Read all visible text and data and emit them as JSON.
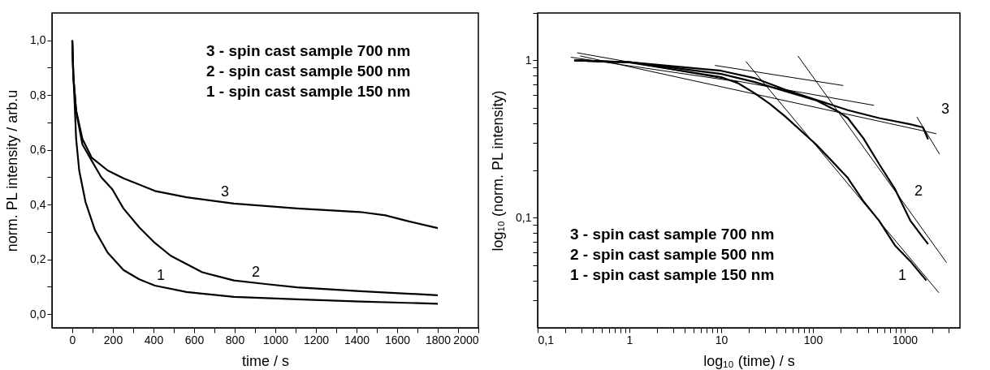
{
  "chart_data": [
    {
      "type": "line",
      "xlabel": "time / s",
      "ylabel": "norm. PL intensity / arb.u",
      "xlim": [
        -100,
        2000
      ],
      "ylim": [
        -0.05,
        1.1
      ],
      "xticks": [
        0,
        {
          "value": 100,
          "label": null
        },
        200,
        {
          "value": 300,
          "label": null
        },
        400,
        {
          "value": 500,
          "label": null
        },
        600,
        {
          "value": 700,
          "label": null
        },
        800,
        {
          "value": 900,
          "label": null
        },
        1000,
        {
          "value": 1100,
          "label": null
        },
        1200,
        {
          "value": 1300,
          "label": null
        },
        1400,
        {
          "value": 1500,
          "label": null
        },
        1600,
        {
          "value": 1700,
          "label": null
        },
        1800,
        {
          "value": 1900,
          "label": null
        },
        2000
      ],
      "yticks": [
        {
          "value": 0,
          "label": "0,0"
        },
        {
          "value": 0.1,
          "label": null
        },
        {
          "value": 0.2,
          "label": "0,2"
        },
        {
          "value": 0.3,
          "label": null
        },
        {
          "value": 0.4,
          "label": "0,4"
        },
        {
          "value": 0.5,
          "label": null
        },
        {
          "value": 0.6,
          "label": "0,6"
        },
        {
          "value": 0.7,
          "label": null
        },
        {
          "value": 0.8,
          "label": "0,8"
        },
        {
          "value": 0.9,
          "label": null
        },
        {
          "value": 1.0,
          "label": "1,0"
        }
      ],
      "grid": false,
      "marker": "none",
      "line_style": "solid",
      "series": [
        {
          "color": "#000000",
          "x": [
            0,
            5,
            19,
            50,
            96,
            174,
            252,
            330,
            407,
            563,
            796,
            1107,
            1418,
            1542,
            1651,
            1800
          ],
          "values": [
            1.0,
            0.87,
            0.744,
            0.64,
            0.571,
            0.525,
            0.496,
            0.473,
            0.45,
            0.427,
            0.404,
            0.386,
            0.373,
            0.361,
            0.34,
            0.314
          ]
        },
        {
          "color": "#000000",
          "x": [
            0,
            5,
            19,
            50,
            96,
            143,
            197,
            252,
            330,
            407,
            485,
            640,
            796,
            951,
            1107,
            1418,
            1800
          ],
          "values": [
            1.0,
            0.87,
            0.74,
            0.62,
            0.56,
            0.5,
            0.456,
            0.386,
            0.317,
            0.26,
            0.213,
            0.153,
            0.123,
            0.11,
            0.098,
            0.084,
            0.069
          ]
        },
        {
          "color": "#000000",
          "x": [
            0,
            5,
            11,
            19,
            34,
            65,
            112,
            174,
            252,
            330,
            407,
            563,
            796,
            1107,
            1418,
            1800
          ],
          "values": [
            1.0,
            0.88,
            0.78,
            0.64,
            0.525,
            0.41,
            0.306,
            0.225,
            0.161,
            0.127,
            0.104,
            0.081,
            0.063,
            0.054,
            0.046,
            0.038
          ]
        }
      ],
      "annotations": [
        "3 - spin cast sample 700 nm",
        "2 - spin cast sample 500 nm",
        "1 - spin cast sample 150 nm",
        "3",
        "2",
        "1"
      ]
    },
    {
      "type": "line",
      "xlabel": "log₁₀ (time) / s",
      "ylabel": "log₁₀ (norm. PL intensity)",
      "log": "xy",
      "xlim": [
        0.1,
        4000
      ],
      "ylim": [
        0.02,
        2
      ],
      "xticks": [
        {
          "value": 0.1,
          "label": "0,1"
        },
        {
          "value": 0.2,
          "label": null
        },
        {
          "value": 0.3,
          "label": null
        },
        {
          "value": 0.4,
          "label": null
        },
        {
          "value": 0.5,
          "label": null
        },
        {
          "value": 0.6,
          "label": null
        },
        {
          "value": 0.7,
          "label": null
        },
        {
          "value": 0.8,
          "label": null
        },
        {
          "value": 0.9,
          "label": null
        },
        1,
        {
          "value": 2,
          "label": null
        },
        {
          "value": 3,
          "label": null
        },
        {
          "value": 4,
          "label": null
        },
        {
          "value": 5,
          "label": null
        },
        {
          "value": 6,
          "label": null
        },
        {
          "value": 7,
          "label": null
        },
        {
          "value": 8,
          "label": null
        },
        {
          "value": 9,
          "label": null
        },
        10,
        {
          "value": 20,
          "label": null
        },
        {
          "value": 30,
          "label": null
        },
        {
          "value": 40,
          "label": null
        },
        {
          "value": 50,
          "label": null
        },
        {
          "value": 60,
          "label": null
        },
        {
          "value": 70,
          "label": null
        },
        {
          "value": 80,
          "label": null
        },
        {
          "value": 90,
          "label": null
        },
        100,
        {
          "value": 200,
          "label": null
        },
        {
          "value": 300,
          "label": null
        },
        {
          "value": 400,
          "label": null
        },
        {
          "value": 500,
          "label": null
        },
        {
          "value": 600,
          "label": null
        },
        {
          "value": 700,
          "label": null
        },
        {
          "value": 800,
          "label": null
        },
        {
          "value": 900,
          "label": null
        },
        1000,
        {
          "value": 2000,
          "label": null
        },
        {
          "value": 3000,
          "label": null
        }
      ],
      "yticks": [
        {
          "value": 0.03,
          "label": null
        },
        {
          "value": 0.04,
          "label": null
        },
        {
          "value": 0.05,
          "label": null
        },
        {
          "value": 0.06,
          "label": null
        },
        {
          "value": 0.07,
          "label": null
        },
        {
          "value": 0.08,
          "label": null
        },
        {
          "value": 0.09,
          "label": null
        },
        {
          "value": 0.1,
          "label": "0,1"
        },
        {
          "value": 0.2,
          "label": null
        },
        {
          "value": 0.3,
          "label": null
        },
        {
          "value": 0.4,
          "label": null
        },
        {
          "value": 0.5,
          "label": null
        },
        {
          "value": 0.6,
          "label": null
        },
        {
          "value": 0.7,
          "label": null
        },
        {
          "value": 0.8,
          "label": null
        },
        {
          "value": 0.9,
          "label": null
        },
        1,
        {
          "value": 2,
          "label": null
        }
      ],
      "grid": false,
      "marker": "none",
      "line_style": "solid",
      "series": [
        {
          "color": "#000000",
          "x": [
            0.25,
            1,
            10,
            22.8,
            50,
            110,
            240,
            525,
            1150,
            1580,
            1800
          ],
          "values": [
            1.0,
            0.973,
            0.859,
            0.773,
            0.652,
            0.56,
            0.483,
            0.43,
            0.393,
            0.375,
            0.315
          ]
        },
        {
          "color": "#000000",
          "x": [
            0.25,
            1,
            10,
            22.8,
            50,
            110,
            190,
            240,
            356,
            525,
            780,
            1150,
            1580,
            1800
          ],
          "values": [
            1.0,
            0.973,
            0.82,
            0.73,
            0.637,
            0.555,
            0.472,
            0.43,
            0.319,
            0.22,
            0.153,
            0.096,
            0.075,
            0.068
          ]
        },
        {
          "color": "#000000",
          "x": [
            0.25,
            1,
            10,
            15.4,
            22.8,
            33.8,
            50,
            110,
            240,
            356,
            525,
            780,
            1150,
            1720
          ],
          "values": [
            1.0,
            0.97,
            0.783,
            0.714,
            0.622,
            0.53,
            0.44,
            0.29,
            0.179,
            0.127,
            0.096,
            0.067,
            0.053,
            0.04
          ]
        },
        {
          "type": "line",
          "color": "#000000",
          "x": [
            8.55,
            214
          ],
          "values": [
            0.929,
            0.692
          ]
        },
        {
          "type": "line",
          "color": "#000000",
          "x": [
            0.27,
            463
          ],
          "values": [
            1.117,
            0.518
          ]
        },
        {
          "type": "line",
          "color": "#000000",
          "x": [
            0.29,
            2213
          ],
          "values": [
            1.067,
            0.342
          ]
        },
        {
          "type": "line",
          "color": "#000000",
          "x": [
            0.23,
            15.4
          ],
          "values": [
            1.047,
            0.731
          ]
        },
        {
          "type": "line",
          "color": "#000000",
          "x": [
            18.5,
            2355
          ],
          "values": [
            0.986,
            0.0334
          ]
        },
        {
          "type": "line",
          "color": "#000000",
          "x": [
            68.6,
            2866
          ],
          "values": [
            1.067,
            0.0518
          ]
        },
        {
          "type": "line",
          "color": "#000000",
          "x": [
            1358,
            2393
          ],
          "values": [
            0.437,
            0.254
          ]
        }
      ],
      "annotations": [
        "3 - spin cast sample 700 nm",
        "2 - spin cast sample 500 nm",
        "1 - spin cast sample 150 nm",
        "3",
        "2",
        "1"
      ]
    }
  ]
}
